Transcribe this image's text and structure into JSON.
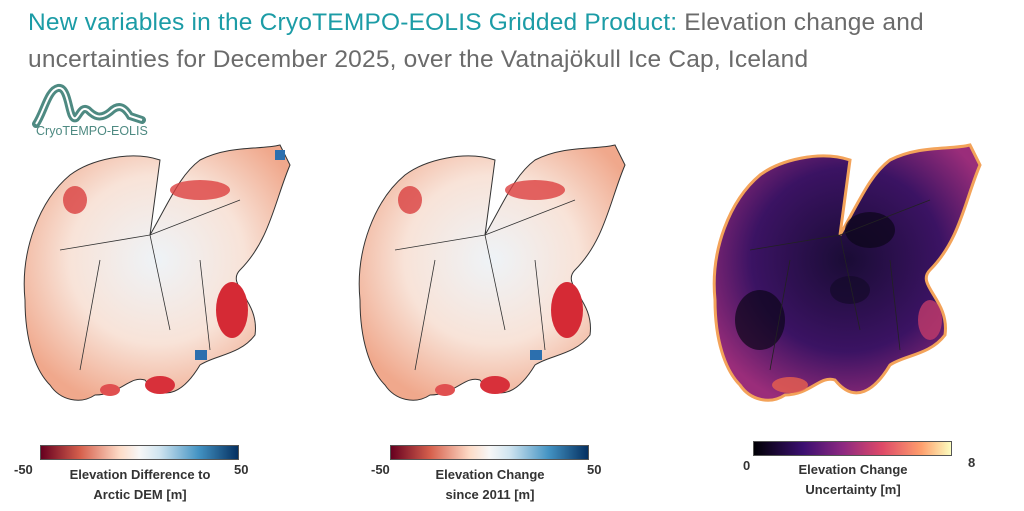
{
  "title": {
    "highlight": "New variables in the CryoTEMPO-EOLIS Gridded Product:",
    "rest": " Elevation change and uncertainties for December 2025, over the Vatnajökull Ice Cap, Iceland"
  },
  "logo": {
    "text": "CryoTEMPO-EOLIS"
  },
  "panels": [
    {
      "colorbar": {
        "min": "-50",
        "max": "50",
        "label_line1": "Elevation Difference to",
        "label_line2": "Arctic DEM [m]",
        "colormap": "RdBu"
      }
    },
    {
      "colorbar": {
        "min": "-50",
        "max": "50",
        "label_line1": "Elevation Change",
        "label_line2": "since 2011 [m]",
        "colormap": "RdBu"
      }
    },
    {
      "colorbar": {
        "min": "0",
        "max": "8",
        "label_line1": "Elevation Change",
        "label_line2": "Uncertainty [m]",
        "colormap": "magma"
      }
    }
  ],
  "colors": {
    "accent": "#1c9ca6",
    "text": "#6b6b6b",
    "logo": "#4e8a82"
  }
}
